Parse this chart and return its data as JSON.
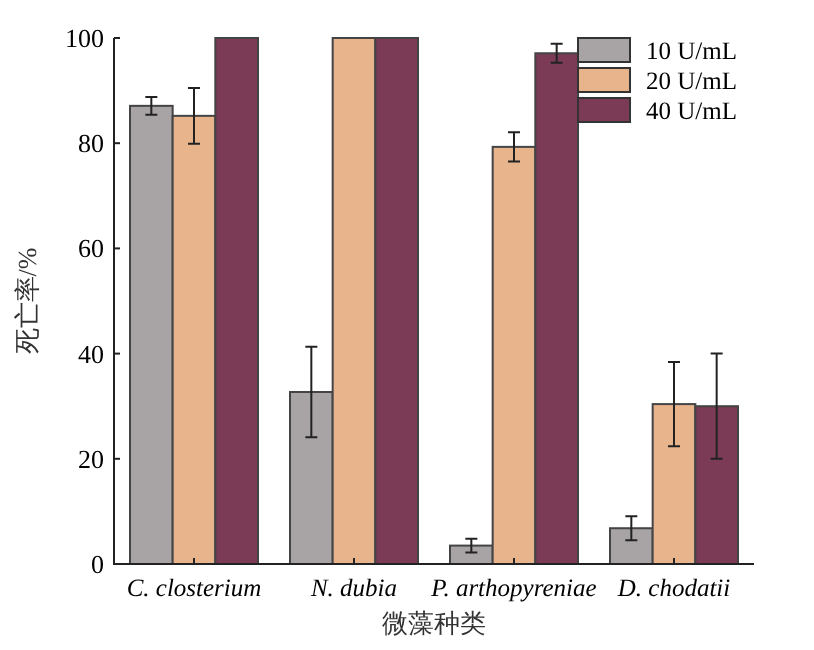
{
  "chart_data": {
    "type": "bar",
    "xlabel": "微藻种类",
    "ylabel": "死亡率/%",
    "categories": [
      "C. closterium",
      "N. dubia",
      "P. arthopyreniae",
      "D. chodatii"
    ],
    "series": [
      {
        "name": "10 U/mL",
        "color": "#a8a4a6",
        "values": [
          87.1,
          32.7,
          3.5,
          6.8
        ],
        "errors": [
          1.7,
          8.6,
          1.3,
          2.3
        ]
      },
      {
        "name": "20 U/mL",
        "color": "#e8b48c",
        "values": [
          85.2,
          100,
          79.3,
          30.4
        ],
        "errors": [
          5.3,
          null,
          2.8,
          8
        ]
      },
      {
        "name": "40 U/mL",
        "color": "#7b3a55",
        "values": [
          100,
          100,
          97.1,
          30
        ],
        "errors": [
          null,
          null,
          1.8,
          10
        ]
      }
    ],
    "ylim": [
      0,
      100
    ],
    "yticks": [
      0,
      20,
      40,
      60,
      80,
      100
    ],
    "legend": "top right"
  }
}
